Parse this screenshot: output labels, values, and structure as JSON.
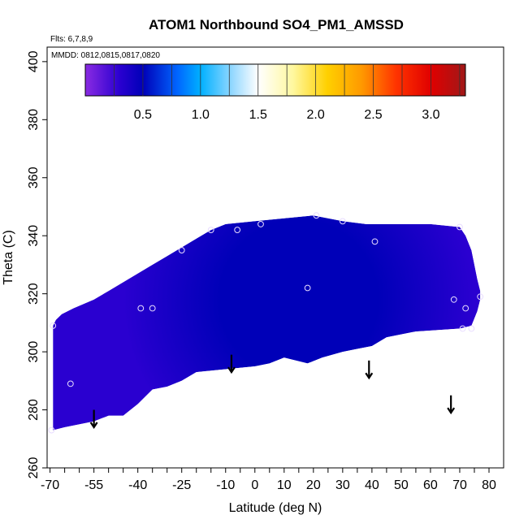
{
  "chart_data": {
    "type": "heatmap",
    "title": "ATOM1 Northbound SO4_PM1_AMSSD",
    "flights_note": "Flts: 6,7,8,9",
    "dates_note": "MMDD: 0812,0815,0817,0820",
    "xlabel": "Latitude (deg N)",
    "ylabel": "Theta (C)",
    "xlim": [
      -71,
      85
    ],
    "ylim": [
      260,
      405
    ],
    "x_ticks": [
      -70,
      -55,
      -40,
      -25,
      -10,
      0,
      10,
      20,
      30,
      40,
      50,
      60,
      70,
      80
    ],
    "x_tick_labels": [
      "-70",
      "-55",
      "-40",
      "-25",
      "-10",
      "0",
      "10",
      "20",
      "30",
      "40",
      "50",
      "60",
      "70",
      "80"
    ],
    "x_minor_step": 5,
    "y_ticks": [
      260,
      280,
      300,
      320,
      340,
      360,
      380,
      400
    ],
    "y_tick_labels": [
      "260",
      "280",
      "300",
      "320",
      "340",
      "360",
      "380",
      "400"
    ],
    "colorbar": {
      "range": [
        0,
        3.3
      ],
      "ticks": [
        0.5,
        1.0,
        1.5,
        2.0,
        2.5,
        3.0
      ],
      "tick_labels": [
        "0.5",
        "1.0",
        "1.5",
        "2.0",
        "2.5",
        "3.0"
      ],
      "stops": [
        {
          "value": 0.0,
          "color": "#8a2be2"
        },
        {
          "value": 0.3,
          "color": "#2a00d0"
        },
        {
          "value": 0.5,
          "color": "#0000b8"
        },
        {
          "value": 0.8,
          "color": "#0066ff"
        },
        {
          "value": 1.0,
          "color": "#00b0ff"
        },
        {
          "value": 1.3,
          "color": "#a0dcff"
        },
        {
          "value": 1.5,
          "color": "#ffffff"
        },
        {
          "value": 1.8,
          "color": "#fff8a0"
        },
        {
          "value": 2.1,
          "color": "#ffd000"
        },
        {
          "value": 2.4,
          "color": "#ff9900"
        },
        {
          "value": 2.7,
          "color": "#ff3300"
        },
        {
          "value": 3.0,
          "color": "#e00000"
        },
        {
          "value": 3.3,
          "color": "#a01818"
        }
      ]
    },
    "field_boundary": {
      "upper": [
        [
          -69,
          309
        ],
        [
          -68,
          311
        ],
        [
          -66,
          313
        ],
        [
          -62,
          315
        ],
        [
          -55,
          318
        ],
        [
          -50,
          321
        ],
        [
          -45,
          324
        ],
        [
          -40,
          327
        ],
        [
          -35,
          330
        ],
        [
          -30,
          333
        ],
        [
          -25,
          336
        ],
        [
          -20,
          339
        ],
        [
          -15,
          342
        ],
        [
          -10,
          344
        ],
        [
          0,
          345
        ],
        [
          10,
          346
        ],
        [
          20,
          347
        ],
        [
          30,
          345
        ],
        [
          38,
          344
        ],
        [
          50,
          344
        ],
        [
          60,
          344
        ],
        [
          70,
          343
        ],
        [
          72,
          340
        ],
        [
          74,
          335
        ],
        [
          75,
          330
        ],
        [
          76,
          325
        ],
        [
          77,
          321
        ]
      ],
      "lower": [
        [
          77,
          318
        ],
        [
          76,
          314
        ],
        [
          74,
          309
        ],
        [
          70,
          308
        ],
        [
          55,
          307
        ],
        [
          45,
          305
        ],
        [
          40,
          302
        ],
        [
          35,
          301
        ],
        [
          30,
          300
        ],
        [
          23,
          298
        ],
        [
          18,
          296
        ],
        [
          10,
          298
        ],
        [
          5,
          296
        ],
        [
          0,
          295
        ],
        [
          -10,
          294
        ],
        [
          -20,
          293
        ],
        [
          -25,
          290
        ],
        [
          -30,
          288
        ],
        [
          -35,
          287
        ],
        [
          -40,
          282
        ],
        [
          -45,
          278
        ],
        [
          -50,
          278
        ],
        [
          -55,
          276
        ],
        [
          -60,
          275
        ],
        [
          -65,
          274
        ],
        [
          -69,
          273
        ]
      ]
    },
    "concentration_core": {
      "description": "dark blue enhanced region",
      "center": [
        15,
        318
      ],
      "peak_value": 0.5,
      "background_value": 0.1
    },
    "sample_points": [
      [
        -69.5,
        273
      ],
      [
        -69,
        309
      ],
      [
        -63,
        289
      ],
      [
        -39,
        315
      ],
      [
        -35,
        315
      ],
      [
        -25,
        335
      ],
      [
        -15,
        342
      ],
      [
        -6,
        342
      ],
      [
        2,
        344
      ],
      [
        18,
        322
      ],
      [
        21,
        347
      ],
      [
        30,
        345
      ],
      [
        41,
        338
      ],
      [
        68,
        318
      ],
      [
        70,
        343
      ],
      [
        71,
        308
      ],
      [
        72,
        315
      ],
      [
        74,
        308
      ],
      [
        77,
        319
      ]
    ],
    "arrows": [
      {
        "lat": -55,
        "theta_top": 280,
        "theta_bottom": 274
      },
      {
        "lat": -8,
        "theta_top": 299,
        "theta_bottom": 293
      },
      {
        "lat": 39,
        "theta_top": 297,
        "theta_bottom": 291
      },
      {
        "lat": 67,
        "theta_top": 285,
        "theta_bottom": 279
      }
    ]
  }
}
